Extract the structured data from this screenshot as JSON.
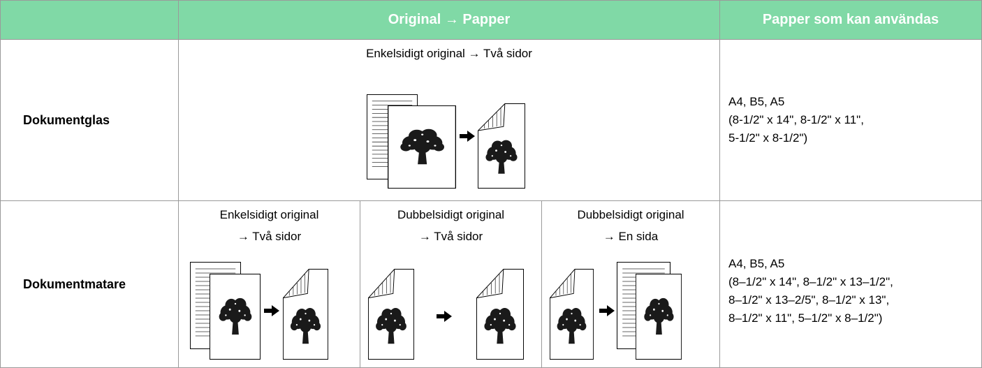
{
  "header": {
    "mode": "Original → Papper",
    "papers": "Papper som kan användas"
  },
  "rows": [
    {
      "label": "Dokumentglas",
      "modes": [
        [
          "Enkelsidigt original → Två sidor"
        ]
      ],
      "papers": [
        "A4, B5, A5",
        "(8-1/2\" x 14\",  8-1/2\" x 11\",",
        "5-1/2\" x 8-1/2\")"
      ]
    },
    {
      "label": "Dokumentmatare",
      "modes": [
        [
          "Enkelsidigt original",
          "→ Två sidor"
        ],
        [
          "Dubbelsidigt original",
          "→ Två sidor"
        ],
        [
          "Dubbelsidigt original",
          "→ En sida"
        ]
      ],
      "papers": [
        "A4, B5, A5",
        "(8–1/2\" x 14\", 8–1/2\" x 13–1/2\",",
        "8–1/2\" x 13–2/5\", 8–1/2\" x 13\",",
        "8–1/2\" x 11\", 5–1/2\" x 8–1/2\")"
      ]
    }
  ]
}
